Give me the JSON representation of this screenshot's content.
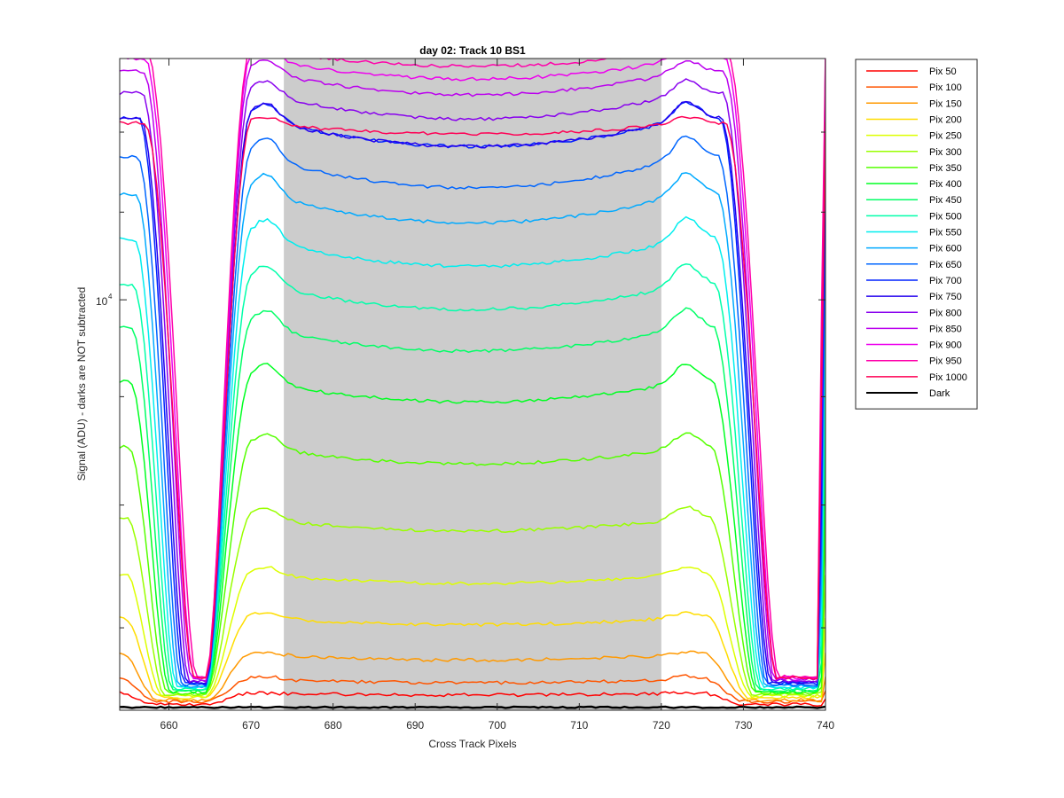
{
  "chart_data": {
    "type": "line",
    "title": "day 02: Track 10  BS1",
    "xlabel": "Cross Track Pixels",
    "ylabel": "Signal (ADU) - darks are NOT subtracted",
    "xlim": [
      654,
      740
    ],
    "x_ticks": [
      "660",
      "670",
      "680",
      "690",
      "700",
      "710",
      "720",
      "730",
      "740"
    ],
    "y_tick_base": "10",
    "y_tick_exp": "4",
    "y_scale": "log",
    "ylim": [
      6400,
      13000
    ],
    "highlight_band": {
      "from": 674,
      "to": 720,
      "color": "#cccccc"
    },
    "grid": false,
    "legend_position": "outside-right",
    "series": [
      {
        "name": "Pix 50",
        "color": "#ff0000",
        "plateau": 6520,
        "rise": 6520,
        "dip": 0.002,
        "floor": 6440,
        "edge": 0
      },
      {
        "name": "Pix 100",
        "color": "#ff5500",
        "plateau": 6620,
        "rise": 6640,
        "dip": 0.004,
        "floor": 6460,
        "edge": 0.2
      },
      {
        "name": "Pix 150",
        "color": "#ff9900",
        "plateau": 6800,
        "rise": 6820,
        "dip": 0.006,
        "floor": 6470,
        "edge": 0.4
      },
      {
        "name": "Pix 200",
        "color": "#ffdd00",
        "plateau": 7080,
        "rise": 7120,
        "dip": 0.008,
        "floor": 6490,
        "edge": 0.6
      },
      {
        "name": "Pix 250",
        "color": "#ddff00",
        "plateau": 7420,
        "rise": 7480,
        "dip": 0.01,
        "floor": 6500,
        "edge": 0.8
      },
      {
        "name": "Pix 300",
        "color": "#99ff00",
        "plateau": 7880,
        "rise": 7980,
        "dip": 0.013,
        "floor": 6510,
        "edge": 1.0
      },
      {
        "name": "Pix 350",
        "color": "#55ff00",
        "plateau": 8520,
        "rise": 8650,
        "dip": 0.018,
        "floor": 6520,
        "edge": 1.2
      },
      {
        "name": "Pix 400",
        "color": "#00ff22",
        "plateau": 9150,
        "rise": 9330,
        "dip": 0.022,
        "floor": 6530,
        "edge": 1.4
      },
      {
        "name": "Pix 450",
        "color": "#00ff66",
        "plateau": 9700,
        "rise": 9900,
        "dip": 0.025,
        "floor": 6540,
        "edge": 1.6
      },
      {
        "name": "Pix 500",
        "color": "#00ffaa",
        "plateau": 10170,
        "rise": 10400,
        "dip": 0.027,
        "floor": 6550,
        "edge": 1.8
      },
      {
        "name": "Pix 550",
        "color": "#00eeee",
        "plateau": 10680,
        "rise": 10930,
        "dip": 0.029,
        "floor": 6560,
        "edge": 2.0
      },
      {
        "name": "Pix 600",
        "color": "#00aaff",
        "plateau": 11220,
        "rise": 11480,
        "dip": 0.031,
        "floor": 6570,
        "edge": 2.2
      },
      {
        "name": "Pix 650",
        "color": "#0066ff",
        "plateau": 11680,
        "rise": 11950,
        "dip": 0.033,
        "floor": 6580,
        "edge": 2.4
      },
      {
        "name": "Pix 700",
        "color": "#0022ff",
        "plateau": 12180,
        "rise": 12400,
        "dip": 0.03,
        "floor": 6590,
        "edge": 2.6
      },
      {
        "name": "Pix 750",
        "color": "#2200ee",
        "plateau": 12180,
        "rise": 12400,
        "dip": 0.03,
        "floor": 6600,
        "edge": 2.8
      },
      {
        "name": "Pix 800",
        "color": "#8800ee",
        "plateau": 12520,
        "rise": 12700,
        "dip": 0.028,
        "floor": 6610,
        "edge": 3.0
      },
      {
        "name": "Pix 850",
        "color": "#bb00ee",
        "plateau": 12820,
        "rise": 12980,
        "dip": 0.025,
        "floor": 6620,
        "edge": 3.2
      },
      {
        "name": "Pix 900",
        "color": "#ee00ee",
        "plateau": 13000,
        "rise": 13150,
        "dip": 0.022,
        "floor": 6630,
        "edge": 3.4
      },
      {
        "name": "Pix 950",
        "color": "#ff00aa",
        "plateau": 13130,
        "rise": 13250,
        "dip": 0.018,
        "floor": 6640,
        "edge": 3.6
      },
      {
        "name": "Pix 1000",
        "color": "#ff0055",
        "plateau": 12120,
        "rise": 12200,
        "dip": 0.012,
        "floor": 6630,
        "edge": 3.4
      },
      {
        "name": "Dark",
        "color": "#000000",
        "plateau": 6420,
        "rise": 6420,
        "dip": 0,
        "floor": 6420,
        "edge": 0
      }
    ]
  }
}
